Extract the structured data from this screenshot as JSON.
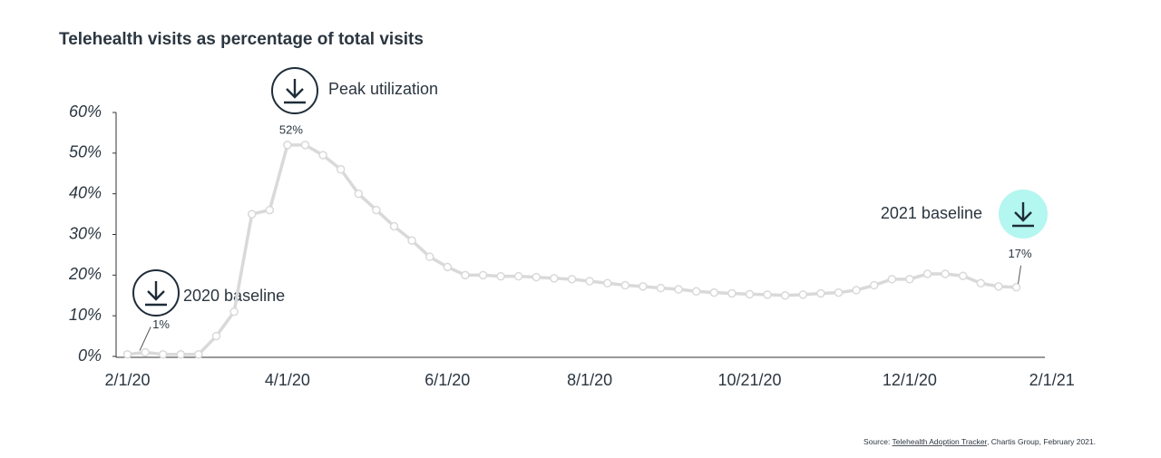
{
  "chart_data": {
    "type": "line",
    "title": "Telehealth visits as percentage of total visits",
    "categories": [
      "2/1/20",
      null,
      null,
      null,
      null,
      null,
      null,
      null,
      null,
      "4/1/20",
      null,
      null,
      null,
      null,
      null,
      null,
      null,
      null,
      "6/1/20",
      null,
      null,
      null,
      null,
      null,
      null,
      null,
      "8/1/20",
      null,
      null,
      null,
      null,
      null,
      null,
      null,
      null,
      "10/21/20",
      null,
      null,
      null,
      null,
      null,
      null,
      null,
      null,
      "12/1/20",
      null,
      null,
      null,
      null,
      null,
      null,
      null,
      "2/1/21"
    ],
    "series": [
      {
        "color": "#d9d9d9",
        "values": [
          0.5,
          1,
          0.5,
          0.5,
          0.5,
          5,
          11,
          35,
          36,
          52,
          52,
          49.5,
          46,
          40,
          36,
          32,
          28.5,
          24.5,
          22,
          20,
          20,
          19.7,
          19.7,
          19.5,
          19.2,
          19,
          18.5,
          18,
          17.5,
          17.2,
          16.8,
          16.5,
          16,
          15.7,
          15.5,
          15.3,
          15.2,
          15,
          15.2,
          15.5,
          15.7,
          16.3,
          17.5,
          19,
          19,
          20.3,
          20.3,
          19.8,
          18,
          17.2,
          17,
          null,
          null
        ],
        "value_labels": [
          null,
          "1%",
          null,
          null,
          null,
          null,
          null,
          null,
          null,
          "52%",
          null,
          null,
          null,
          null,
          null,
          null,
          null,
          null,
          null,
          null,
          null,
          null,
          null,
          null,
          null,
          null,
          null,
          null,
          null,
          null,
          null,
          null,
          null,
          null,
          null,
          null,
          null,
          null,
          null,
          null,
          null,
          null,
          null,
          null,
          null,
          null,
          null,
          null,
          null,
          null,
          "17%",
          null,
          null
        ]
      }
    ],
    "ylim": [
      0,
      60
    ],
    "yticks": [
      {
        "value": 0,
        "label": "0%"
      },
      {
        "value": 10,
        "label": "10%"
      },
      {
        "value": 20,
        "label": "20%"
      },
      {
        "value": 30,
        "label": "30%"
      },
      {
        "value": 40,
        "label": "40%"
      },
      {
        "value": 50,
        "label": "50%"
      },
      {
        "value": 60,
        "label": "60%"
      }
    ],
    "annotations": [
      "Peak utilization",
      "2020 baseline",
      "2021 baseline"
    ],
    "source": {
      "prefix": "Source:",
      "link": "Telehealth Adoption Tracker",
      "suffix": ", Chartis Group,  February 2021."
    }
  }
}
